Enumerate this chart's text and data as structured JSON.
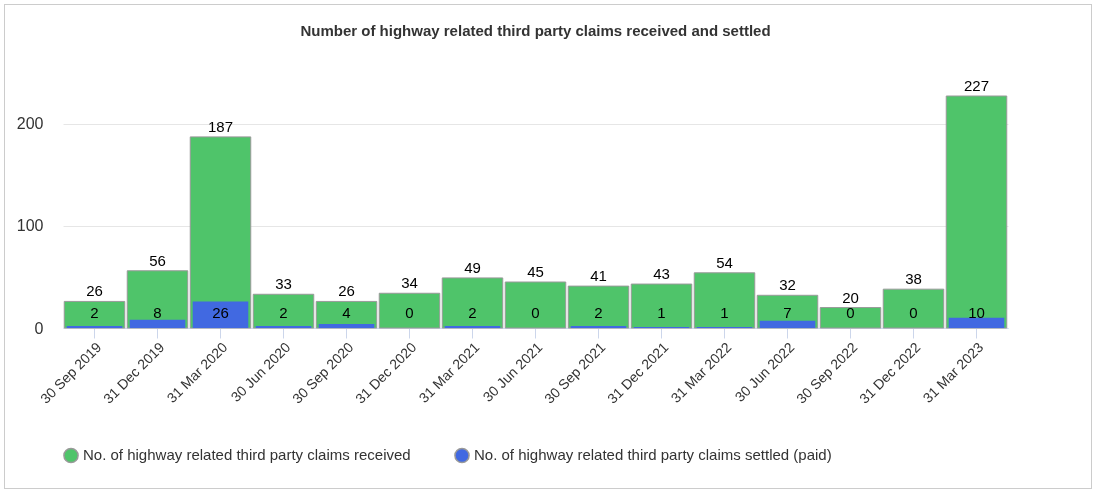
{
  "chart_data": {
    "type": "bar",
    "title": "Number of highway related third party claims received and settled",
    "categories": [
      "30 Sep 2019",
      "31 Dec 2019",
      "31 Mar 2020",
      "30 Jun 2020",
      "30 Sep 2020",
      "31 Dec 2020",
      "31 Mar 2021",
      "30 Jun 2021",
      "30 Sep 2021",
      "31 Dec 2021",
      "31 Mar 2022",
      "30 Jun 2022",
      "30 Sep 2022",
      "31 Dec 2022",
      "31 Mar 2023"
    ],
    "series": [
      {
        "name": "No. of highway related third party claims received",
        "color": "#4fc46a",
        "values": [
          26,
          56,
          187,
          33,
          26,
          34,
          49,
          45,
          41,
          43,
          54,
          32,
          20,
          38,
          227
        ]
      },
      {
        "name": "No. of highway related third party claims settled (paid)",
        "color": "#4169e1",
        "values": [
          2,
          8,
          26,
          2,
          4,
          0,
          2,
          0,
          2,
          1,
          1,
          7,
          0,
          0,
          10
        ]
      }
    ],
    "ylim": [
      0,
      227
    ],
    "yticks": [
      0,
      100,
      200
    ],
    "grid": "y",
    "legend": "bottom",
    "data_labels": true,
    "marker": "circle"
  }
}
